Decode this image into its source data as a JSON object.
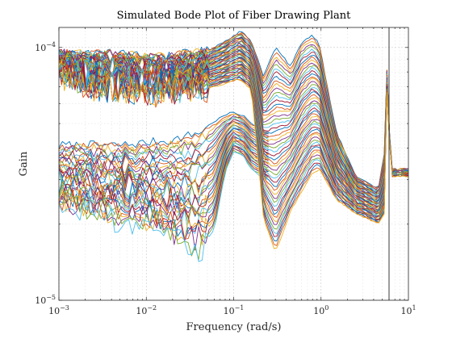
{
  "chart_data": {
    "type": "line",
    "title": "Simulated Bode Plot of Fiber Drawing Plant",
    "xlabel": "Frequency (rad/s)",
    "ylabel": "Gain",
    "xscale": "log",
    "yscale": "log",
    "xlim": [
      0.001,
      10
    ],
    "ylim": [
      1e-05,
      0.00012
    ],
    "grid": "major and minor, dotted",
    "legend": "none",
    "x_ticks": [
      {
        "value": 0.001,
        "base": "10",
        "exp": "−3"
      },
      {
        "value": 0.01,
        "base": "10",
        "exp": "−2"
      },
      {
        "value": 0.1,
        "base": "10",
        "exp": "−1"
      },
      {
        "value": 1,
        "base": "10",
        "exp": "0"
      },
      {
        "value": 10,
        "base": "10",
        "exp": "1"
      }
    ],
    "y_ticks": [
      {
        "value": 1e-05,
        "base": "10",
        "exp": "−5"
      },
      {
        "value": 0.0001,
        "base": "10",
        "exp": "−4"
      }
    ],
    "vertical_marker_x": 6,
    "series_colors": [
      "#0072BD",
      "#D95319",
      "#EDB120",
      "#7E2F8E",
      "#77AC30",
      "#4DBEEE",
      "#A2142F"
    ],
    "upper_family": {
      "count": 52,
      "x": [
        0.001,
        0.002,
        0.005,
        0.01,
        0.02,
        0.05,
        0.08,
        0.12,
        0.16,
        0.22,
        0.3,
        0.45,
        0.6,
        0.8,
        0.95,
        1.5,
        2.5,
        3.5,
        4.5,
        5.3,
        5.8,
        6.2
      ],
      "top_y": [
        9.5e-05,
        9.5e-05,
        9.5e-05,
        9.2e-05,
        9.3e-05,
        9.7e-05,
        0.000106,
        0.000116,
        0.000106,
        7.7e-05,
        0.0001,
        8.4e-05,
        0.000105,
        0.000112,
        0.000104,
        4.6e-05,
        3.1e-05,
        2.9e-05,
        2.75e-05,
        3.8e-05,
        0.000105,
        3.3e-05
      ],
      "bottom_y": [
        8e-05,
        7e-05,
        6.8e-05,
        6.6e-05,
        6.7e-05,
        6.9e-05,
        7.2e-05,
        7.5e-05,
        6.8e-05,
        2.1e-05,
        1.55e-05,
        2.25e-05,
        2.7e-05,
        3.2e-05,
        3.3e-05,
        2.5e-05,
        2.2e-05,
        2.1e-05,
        2e-05,
        2.2e-05,
        9.5e-05,
        3.1e-05
      ]
    },
    "lower_family": {
      "count": 34,
      "x": [
        0.001,
        0.002,
        0.005,
        0.01,
        0.02,
        0.04,
        0.06,
        0.08,
        0.1,
        0.13,
        0.16,
        0.2,
        0.25
      ],
      "top_y": [
        4.1e-05,
        4.1e-05,
        4.1e-05,
        4.2e-05,
        4.3e-05,
        4.6e-05,
        5.1e-05,
        5.4e-05,
        5.55e-05,
        5.35e-05,
        5e-05,
        4.8e-05,
        4.6e-05
      ],
      "bottom_y": [
        2.4e-05,
        2.3e-05,
        2.1e-05,
        2e-05,
        1.8e-05,
        1.6e-05,
        1.9e-05,
        3.2e-05,
        3.9e-05,
        3.7e-05,
        3.3e-05,
        3.1e-05,
        3e-05
      ]
    }
  }
}
